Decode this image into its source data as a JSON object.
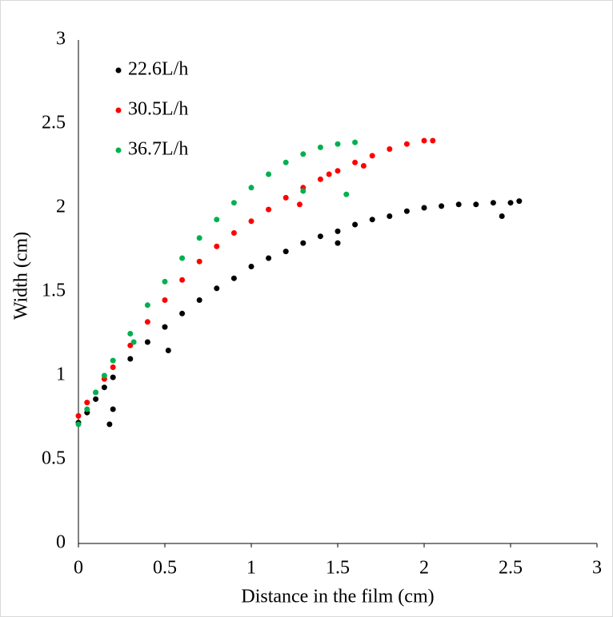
{
  "chart_data": {
    "type": "scatter",
    "x_label": "Distance in the film (cm)",
    "y_label": "Width (cm)",
    "xlim": [
      0,
      3
    ],
    "xticks": [
      0,
      0.5,
      1,
      1.5,
      2,
      2.5,
      3
    ],
    "ylim": [
      0,
      3
    ],
    "yticks": [
      0,
      0.5,
      1,
      1.5,
      2,
      2.5,
      3
    ],
    "grid": false,
    "legend": "upper-left",
    "series": [
      {
        "name": "22.6L/h",
        "color": "#000000",
        "x": [
          0,
          0.05,
          0.1,
          0.15,
          0.2,
          0.3,
          0.4,
          0.5,
          0.6,
          0.7,
          0.8,
          0.9,
          1.0,
          1.1,
          1.2,
          1.3,
          1.4,
          1.5,
          1.6,
          1.7,
          1.8,
          1.9,
          2.0,
          2.1,
          2.2,
          2.3,
          2.4,
          2.5,
          2.55,
          0.18,
          0.2,
          0.52,
          1.5,
          2.45
        ],
        "values": [
          0.72,
          0.78,
          0.86,
          0.93,
          0.99,
          1.1,
          1.2,
          1.29,
          1.37,
          1.45,
          1.52,
          1.58,
          1.65,
          1.7,
          1.74,
          1.79,
          1.83,
          1.86,
          1.9,
          1.93,
          1.95,
          1.98,
          2.0,
          2.01,
          2.02,
          2.02,
          2.03,
          2.03,
          2.04,
          0.71,
          0.8,
          1.15,
          1.79,
          1.95
        ]
      },
      {
        "name": "30.5L/h",
        "color": "#ff0000",
        "x": [
          0,
          0.05,
          0.1,
          0.15,
          0.2,
          0.3,
          0.4,
          0.5,
          0.6,
          0.7,
          0.8,
          0.9,
          1.0,
          1.1,
          1.2,
          1.3,
          1.4,
          1.5,
          1.6,
          1.7,
          1.8,
          1.9,
          2.0,
          2.05,
          1.28,
          1.45,
          1.65
        ],
        "values": [
          0.76,
          0.84,
          0.9,
          0.98,
          1.05,
          1.18,
          1.32,
          1.45,
          1.57,
          1.68,
          1.77,
          1.85,
          1.92,
          1.99,
          2.06,
          2.12,
          2.17,
          2.22,
          2.27,
          2.31,
          2.35,
          2.38,
          2.4,
          2.4,
          2.02,
          2.2,
          2.25
        ]
      },
      {
        "name": "36.7L/h",
        "color": "#00b050",
        "x": [
          0,
          0.05,
          0.1,
          0.15,
          0.2,
          0.3,
          0.4,
          0.5,
          0.6,
          0.7,
          0.8,
          0.9,
          1.0,
          1.1,
          1.2,
          1.3,
          1.4,
          1.5,
          1.6,
          0.32,
          1.55,
          1.3
        ],
        "values": [
          0.71,
          0.8,
          0.9,
          1.0,
          1.09,
          1.25,
          1.42,
          1.56,
          1.7,
          1.82,
          1.93,
          2.03,
          2.12,
          2.2,
          2.27,
          2.32,
          2.36,
          2.38,
          2.39,
          1.2,
          2.08,
          2.1
        ]
      }
    ]
  }
}
